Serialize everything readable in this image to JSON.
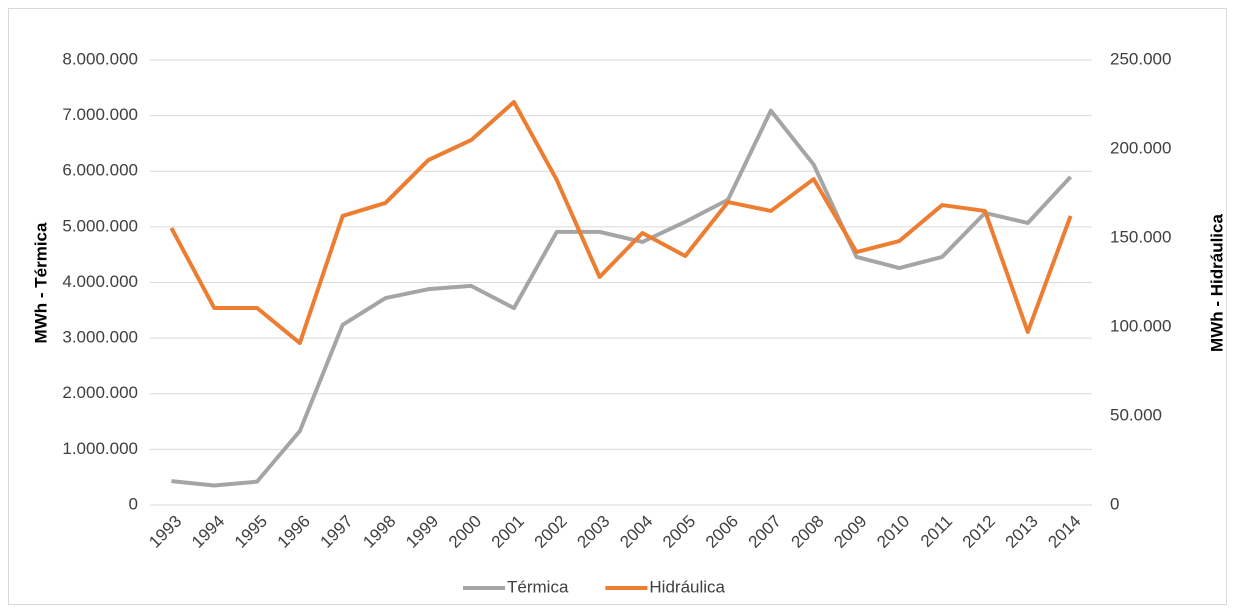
{
  "chart_data": {
    "type": "line",
    "categories": [
      "1993",
      "1994",
      "1995",
      "1996",
      "1997",
      "1998",
      "1999",
      "2000",
      "2001",
      "2002",
      "2003",
      "2004",
      "2005",
      "2006",
      "2007",
      "2008",
      "2009",
      "2010",
      "2011",
      "2012",
      "2013",
      "2014"
    ],
    "y_label": "MWh - Térmica",
    "y2_label": "MWh - Hidráulica",
    "series": [
      {
        "name": "Térmica",
        "color": "#a5a5a5",
        "values": [
          430000,
          350000,
          420000,
          1330000,
          3240000,
          3720000,
          3880000,
          3940000,
          3540000,
          4910000,
          4910000,
          4730000,
          5090000,
          5490000,
          7090000,
          6120000,
          4460000,
          4260000,
          4460000,
          5250000,
          5070000,
          5900000
        ]
      },
      {
        "name": "Hidráulica",
        "color": "#ed7d31",
        "axis": "y2",
        "values": [
          155600,
          110700,
          110700,
          91000,
          162400,
          169700,
          193800,
          205000,
          226400,
          182600,
          128100,
          152800,
          139900,
          170200,
          165200,
          183100,
          142100,
          148300,
          168500,
          165200,
          97200,
          162400
        ]
      }
    ],
    "ylim": [
      0,
      8000000
    ],
    "yticks": [
      0,
      {
        "value": 1000000,
        "label": "1.000.000"
      },
      {
        "value": 2000000,
        "label": "2.000.000"
      },
      {
        "value": 3000000,
        "label": "3.000.000"
      },
      {
        "value": 4000000,
        "label": "4.000.000"
      },
      {
        "value": 5000000,
        "label": "5.000.000"
      },
      {
        "value": 6000000,
        "label": "6.000.000"
      },
      {
        "value": 7000000,
        "label": "7.000.000"
      },
      {
        "value": 8000000,
        "label": "8.000.000"
      }
    ],
    "y2lim": [
      0,
      250000
    ],
    "y2ticks": [
      0,
      {
        "value": 50000,
        "label": "50.000"
      },
      {
        "value": 100000,
        "label": "100.000"
      },
      {
        "value": 150000,
        "label": "150.000"
      },
      {
        "value": 200000,
        "label": "200.000"
      },
      {
        "value": 250000,
        "label": "250.000"
      }
    ],
    "grid": true,
    "legend": "bottom"
  }
}
